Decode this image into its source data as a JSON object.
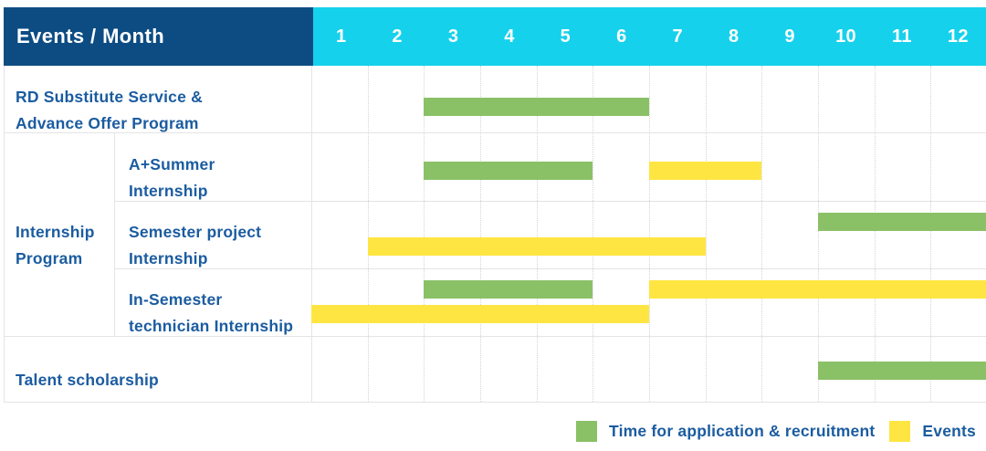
{
  "title": "Events / Month",
  "months": [
    "1",
    "2",
    "3",
    "4",
    "5",
    "6",
    "7",
    "8",
    "9",
    "10",
    "11",
    "12"
  ],
  "colors": {
    "header_bg": "#0D4C83",
    "month_header_bg": "#15D1EC",
    "bar_green": "#8AC167",
    "bar_yellow": "#FFE542",
    "label_text": "#1B5CA0",
    "grid_line": "#E4E4E4",
    "column_dotted": "#D4D4D4"
  },
  "legend": {
    "items": [
      {
        "swatch": "green",
        "label": "Time for application & recruitment"
      },
      {
        "swatch": "yellow",
        "label": "Events"
      }
    ]
  },
  "chart_data": {
    "type": "gantt",
    "title": "Events / Month",
    "x_unit": "month",
    "x_ticks": [
      1,
      2,
      3,
      4,
      5,
      6,
      7,
      8,
      9,
      10,
      11,
      12
    ],
    "x_range": [
      1,
      12
    ],
    "grid": "dotted-monthly-columns",
    "legend_position": "bottom-right",
    "legend": {
      "green": "Time for application & recruitment",
      "yellow": "Events"
    },
    "groups": [
      {
        "label": "Internship Program",
        "label_lines": [
          "Internship",
          "Program"
        ],
        "row_start": 1,
        "row_end": 3
      }
    ],
    "rows": [
      {
        "label": "RD Substitute Service & Advance Offer Program",
        "label_lines": [
          "RD Substitute Service &",
          "Advance Offer Program"
        ],
        "bars": [
          {
            "color": "green",
            "start_month": 3,
            "end_month": 6,
            "line": 1
          }
        ]
      },
      {
        "label": "A+Summer Internship",
        "label_lines": [
          "A+Summer",
          "Internship"
        ],
        "group": "Internship Program",
        "bars": [
          {
            "color": "green",
            "start_month": 3,
            "end_month": 5,
            "line": 1
          },
          {
            "color": "yellow",
            "start_month": 7,
            "end_month": 8,
            "line": 1
          }
        ]
      },
      {
        "label": "Semester project Internship",
        "label_lines": [
          "Semester project",
          "Internship"
        ],
        "group": "Internship Program",
        "bars": [
          {
            "color": "green",
            "start_month": 10,
            "end_month": 12,
            "line": 1
          },
          {
            "color": "yellow",
            "start_month": 2,
            "end_month": 7,
            "line": 2
          }
        ]
      },
      {
        "label": "In-Semester technician Internship",
        "label_lines": [
          "In-Semester",
          "technician Internship"
        ],
        "group": "Internship Program",
        "bars": [
          {
            "color": "green",
            "start_month": 3,
            "end_month": 5,
            "line": 1
          },
          {
            "color": "yellow",
            "start_month": 7,
            "end_month": 12,
            "line": 1
          },
          {
            "color": "yellow",
            "start_month": 1,
            "end_month": 6,
            "line": 2
          }
        ]
      },
      {
        "label": "Talent scholarship",
        "label_lines": [
          "Talent scholarship"
        ],
        "bars": [
          {
            "color": "green",
            "start_month": 10,
            "end_month": 12,
            "line": 1
          }
        ]
      }
    ]
  }
}
